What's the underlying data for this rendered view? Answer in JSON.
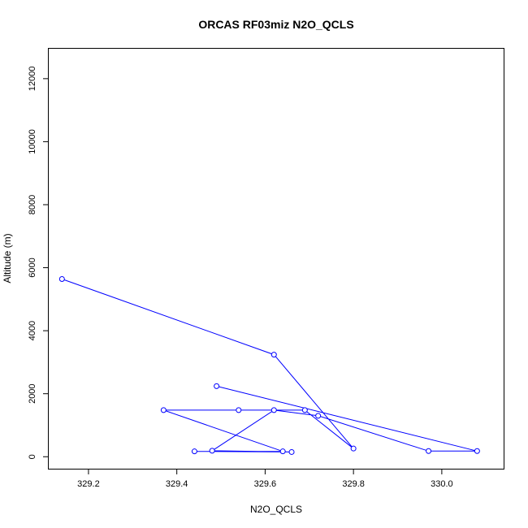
{
  "chart_data": {
    "type": "line",
    "title": "ORCAS RF03miz N2O_QCLS",
    "xlabel": "N2O_QCLS",
    "ylabel": "Altitude (m)",
    "xlim": [
      329.11,
      330.14
    ],
    "ylim": [
      -380,
      12950
    ],
    "x_ticks": [
      329.2,
      329.4,
      329.6,
      329.8,
      330.0
    ],
    "x_tick_labels": [
      "329.2",
      "329.4",
      "329.6",
      "329.8",
      "330.0"
    ],
    "y_ticks": [
      0,
      2000,
      4000,
      6000,
      8000,
      10000,
      12000
    ],
    "y_tick_labels": [
      "0",
      "2000",
      "4000",
      "6000",
      "8000",
      "10000",
      "12000"
    ],
    "grid": false,
    "series": [
      {
        "color": "#0000ff",
        "marker": "open-circle",
        "points": [
          {
            "x": 329.14,
            "y": 5640
          },
          {
            "x": 329.62,
            "y": 3240
          },
          {
            "x": 329.8,
            "y": 260
          },
          {
            "x": 329.69,
            "y": 1480
          },
          {
            "x": 329.54,
            "y": 1480
          },
          {
            "x": 329.37,
            "y": 1480
          },
          {
            "x": 329.64,
            "y": 170
          },
          {
            "x": 329.44,
            "y": 170
          },
          {
            "x": 329.66,
            "y": 150
          },
          {
            "x": 329.48,
            "y": 190
          },
          {
            "x": 329.62,
            "y": 1480
          },
          {
            "x": 329.72,
            "y": 1300
          },
          {
            "x": 329.97,
            "y": 180
          },
          {
            "x": 330.08,
            "y": 180
          },
          {
            "x": 329.49,
            "y": 2240
          }
        ]
      }
    ]
  }
}
